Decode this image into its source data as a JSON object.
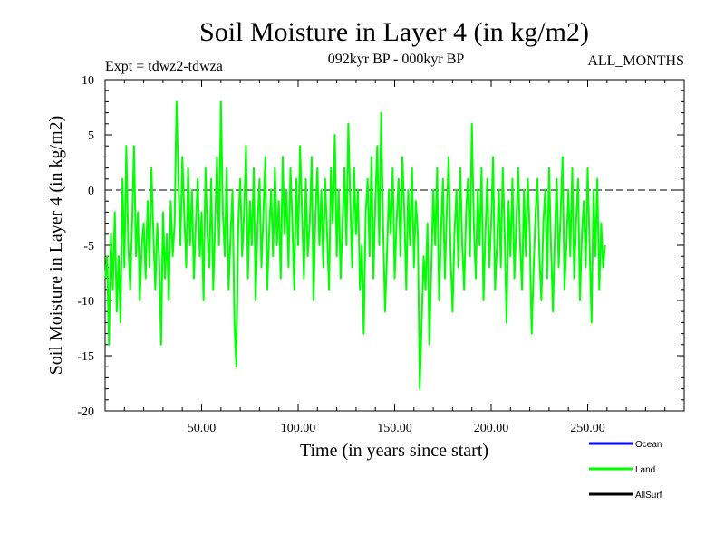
{
  "chart_data": {
    "type": "line",
    "title": "Soil Moisture in Layer 4 (in kg/m2)",
    "subtitle_left": "Expt = tdwz2-tdwza",
    "subtitle_center": "092kyr BP - 000kyr BP",
    "subtitle_right": "ALL_MONTHS",
    "xlabel": "Time (in years since start)",
    "ylabel": "Soil Moisture in Layer 4 (in kg/m2)",
    "xlim": [
      0,
      300
    ],
    "ylim": [
      -20,
      10
    ],
    "x_ticks": [
      50,
      100,
      150,
      200,
      250
    ],
    "x_tick_labels": [
      "50.00",
      "100.00",
      "150.00",
      "200.00",
      "250.00"
    ],
    "y_ticks": [
      -20,
      -15,
      -10,
      -5,
      0,
      5,
      10
    ],
    "y_tick_labels": [
      "-20",
      "-15",
      "-10",
      "-5",
      "0",
      "5",
      "10"
    ],
    "reference_line": 0,
    "legend_placement": "bottom-right",
    "legend": [
      {
        "name": "Ocean",
        "color": "#0000ff"
      },
      {
        "name": "Land",
        "color": "#00ff00"
      },
      {
        "name": "AllSurf",
        "color": "#000000"
      }
    ],
    "series": [
      {
        "name": "Land",
        "color": "#00ff00",
        "x_start": 0,
        "x_step": 1,
        "values": [
          -8,
          -6,
          -14,
          -4,
          -9,
          -2,
          -11,
          -6,
          -12,
          1,
          -7,
          4,
          -5,
          -9,
          -3,
          4,
          -6,
          -2,
          -10,
          -5,
          -3,
          -8,
          -1,
          -7,
          2,
          -4,
          -9,
          -3,
          -6,
          -14,
          -2,
          -8,
          -4,
          -10,
          -1,
          -6,
          -3,
          8,
          1,
          -5,
          3,
          -2,
          -7,
          2,
          -5,
          0,
          -8,
          -3,
          1,
          -6,
          -2,
          -10,
          2,
          -4,
          -7,
          1,
          -9,
          -3,
          3,
          -5,
          8,
          -2,
          -6,
          2,
          -9,
          -4,
          0,
          -12,
          -16,
          -3,
          1,
          -6,
          -2,
          4,
          -8,
          -1,
          -5,
          2,
          -10,
          -3,
          1,
          -7,
          -2,
          3,
          -9,
          -4,
          0,
          -6,
          2,
          -5,
          -1,
          -8,
          3,
          -4,
          0,
          -7,
          2,
          -3,
          -9,
          1,
          -5,
          4,
          -2,
          -8,
          1,
          -6,
          -3,
          3,
          -10,
          -2,
          2,
          -5,
          0,
          -7,
          1,
          -4,
          -9,
          2,
          -3,
          5,
          -6,
          0,
          -8,
          -3,
          2,
          -5,
          6,
          -1,
          -7,
          2,
          -4,
          0,
          -9,
          -5,
          -13,
          -2,
          1,
          -6,
          3,
          -8,
          -1,
          4,
          -5,
          7,
          -3,
          -11,
          -6,
          0,
          -4,
          2,
          -8,
          -3,
          1,
          -6,
          3,
          -2,
          -9,
          0,
          -5,
          2,
          -7,
          -1,
          -4,
          -18,
          -12,
          -6,
          -9,
          -3,
          -14,
          -7,
          0,
          -5,
          2,
          -10,
          -4,
          1,
          -8,
          -2,
          3,
          -6,
          -11,
          -4,
          0,
          -7,
          2,
          -5,
          -9,
          -2,
          1,
          -6,
          6,
          -3,
          -8,
          0,
          -5,
          2,
          -10,
          -4,
          1,
          -7,
          -3,
          3,
          -9,
          -5,
          0,
          -7,
          2,
          -4,
          -12,
          -1,
          -6,
          1,
          -8,
          -3,
          2,
          -5,
          -9,
          0,
          -6,
          1,
          -4,
          -13,
          -7,
          -2,
          1,
          -6,
          -10,
          -3,
          0,
          -8,
          2,
          -5,
          -11,
          -4,
          1,
          -7,
          -2,
          3,
          -9,
          -5,
          0,
          -6,
          2,
          -8,
          -3,
          1,
          -10,
          -4,
          -1,
          -7,
          2,
          -5,
          -12,
          0,
          -6,
          1,
          -9,
          -3,
          -7,
          -5
        ]
      }
    ]
  }
}
